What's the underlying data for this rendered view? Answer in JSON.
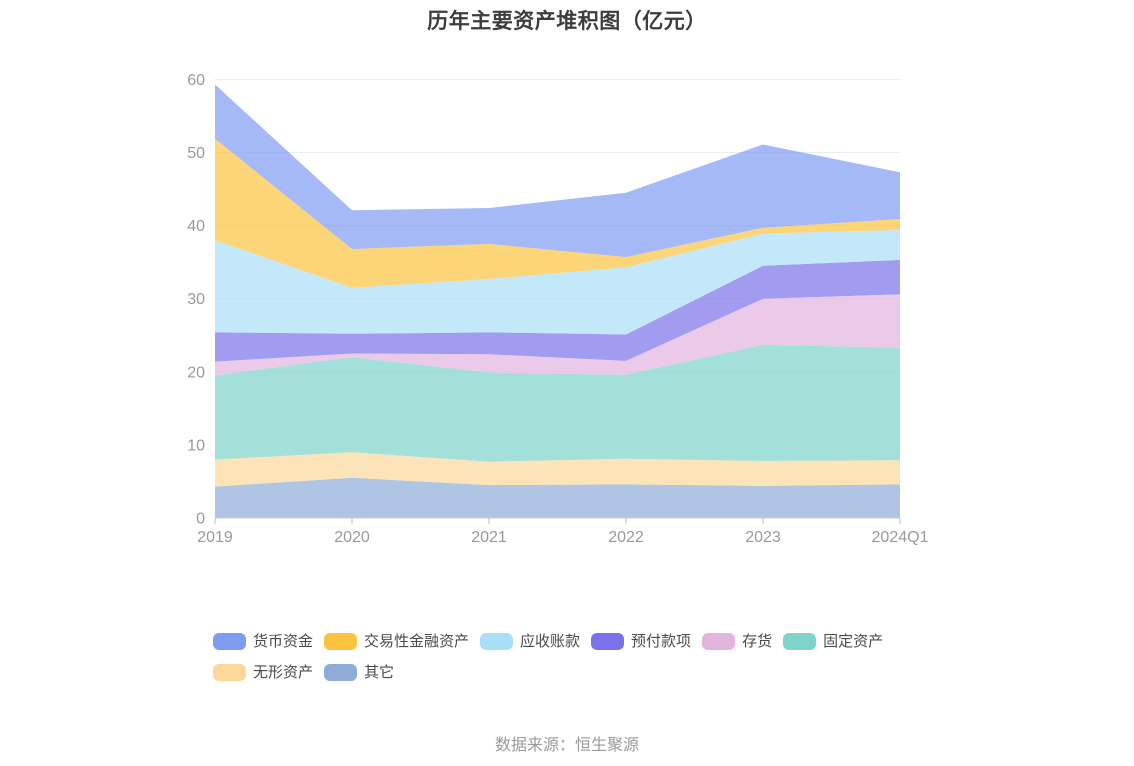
{
  "title": "历年主要资产堆积图（亿元）",
  "source": "数据来源：恒生聚源",
  "chart_data": {
    "type": "area",
    "stacked": true,
    "title": "历年主要资产堆积图（亿元）",
    "x": [
      "2019",
      "2020",
      "2021",
      "2022",
      "2023",
      "2024Q1"
    ],
    "ylim": [
      0,
      60
    ],
    "y_ticks": [
      0,
      10,
      20,
      30,
      40,
      50,
      60
    ],
    "grid": true,
    "legend_position": "bottom",
    "area_opacity": 0.7,
    "stack_bottom_to_top": [
      "其它",
      "无形资产",
      "固定资产",
      "存货",
      "预付款项",
      "应收账款",
      "交易性金融资产",
      "货币资金"
    ],
    "series": [
      {
        "name": "货币资金",
        "color": "#7E9BF1",
        "values": [
          7.4,
          5.3,
          4.9,
          8.8,
          11.4,
          6.4
        ]
      },
      {
        "name": "交易性金融资产",
        "color": "#FBC33F",
        "values": [
          13.9,
          5.3,
          4.8,
          1.4,
          0.8,
          1.5
        ]
      },
      {
        "name": "应收账款",
        "color": "#A9DEF7",
        "values": [
          12.6,
          6.3,
          7.3,
          9.2,
          4.4,
          4.1
        ]
      },
      {
        "name": "预付款项",
        "color": "#7B72E9",
        "values": [
          4.0,
          2.7,
          3.0,
          3.6,
          4.5,
          4.7
        ]
      },
      {
        "name": "存货",
        "color": "#E3B4DF",
        "values": [
          1.9,
          0.5,
          2.5,
          1.9,
          6.3,
          7.3
        ]
      },
      {
        "name": "固定资产",
        "color": "#7ED3CA",
        "values": [
          11.5,
          13.0,
          12.2,
          11.5,
          15.9,
          15.4
        ]
      },
      {
        "name": "无形资产",
        "color": "#FBD89A",
        "values": [
          3.7,
          3.5,
          3.2,
          3.5,
          3.4,
          3.3
        ]
      },
      {
        "name": "其它",
        "color": "#8FACD9",
        "values": [
          4.3,
          5.5,
          4.5,
          4.6,
          4.4,
          4.6
        ]
      }
    ],
    "axis_colors": {
      "axis_line": "#cccccc",
      "tick": "#bbbbbb",
      "label": "#999999",
      "grid_line": "#e9ecf4"
    }
  }
}
